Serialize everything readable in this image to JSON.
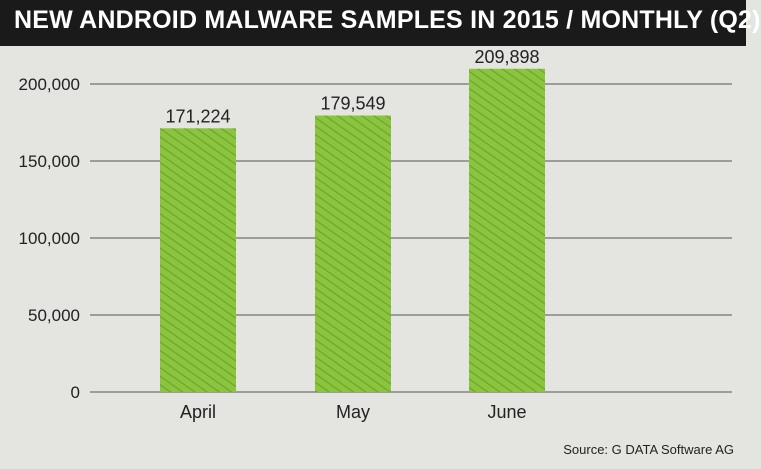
{
  "header": {
    "title": "NEW ANDROID MALWARE SAMPLES IN 2015 / MONTHLY (Q2)"
  },
  "footer": {
    "source": "Source: G DATA Software AG"
  },
  "colors": {
    "bar": "#8cc43f",
    "bar_dark": "#6aa82a",
    "background": "#e4e4e1",
    "title_bg": "#1a1a1a"
  },
  "chart_data": {
    "type": "bar",
    "title": "NEW ANDROID MALWARE SAMPLES IN 2015 / MONTHLY (Q2)",
    "categories": [
      "April",
      "May",
      "June"
    ],
    "values": [
      171224,
      179549,
      209898
    ],
    "value_labels": [
      "171,224",
      "179,549",
      "209,898"
    ],
    "yticks": [
      0,
      50000,
      100000,
      150000,
      200000
    ],
    "ytick_labels": [
      "0",
      "50,000",
      "100,000",
      "150,000",
      "200,000"
    ],
    "ylim": [
      0,
      200000
    ],
    "xlabel": "",
    "ylabel": "",
    "grid": true,
    "legend": "none"
  }
}
